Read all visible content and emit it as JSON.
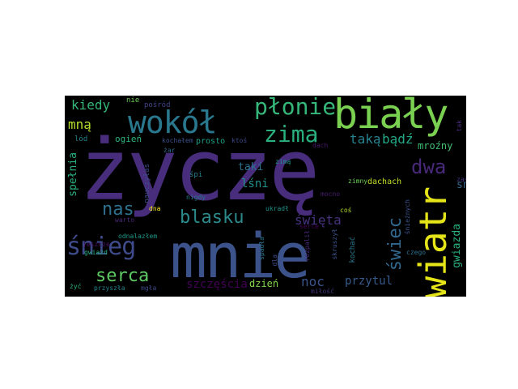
{
  "wordcloud": {
    "background": "#000000",
    "palette": [
      "#440154",
      "#472d7b",
      "#3b528b",
      "#2c728e",
      "#21918c",
      "#28ae80",
      "#5ec962",
      "#addc30",
      "#fde725"
    ],
    "words": [
      {
        "text": "życzę",
        "color": "#472d7b"
      },
      {
        "text": "mnie",
        "color": "#3b528b"
      },
      {
        "text": "biały",
        "color": "#7ad151"
      },
      {
        "text": "wiatr",
        "color": "#e5e419"
      },
      {
        "text": "wokół",
        "color": "#2a788e"
      },
      {
        "text": "płonie",
        "color": "#35b779"
      },
      {
        "text": "zima",
        "color": "#2ab07f"
      },
      {
        "text": "śnieg",
        "color": "#3e4a89"
      },
      {
        "text": "blasku",
        "color": "#2c8a8c"
      },
      {
        "text": "serca",
        "color": "#5ec962"
      },
      {
        "text": "nas",
        "color": "#2e6f8e"
      },
      {
        "text": "dwa",
        "color": "#482979"
      },
      {
        "text": "świec",
        "color": "#31678e"
      },
      {
        "text": "kiedy",
        "color": "#35b779"
      },
      {
        "text": "taką",
        "color": "#26828e"
      },
      {
        "text": "bądź",
        "color": "#22a884"
      },
      {
        "text": "mną",
        "color": "#b5de2b"
      },
      {
        "text": "lśni",
        "color": "#21918c"
      },
      {
        "text": "taki",
        "color": "#2c728e"
      },
      {
        "text": "sny",
        "color": "#31688e"
      },
      {
        "text": "mroźny",
        "color": "#3fbc73"
      },
      {
        "text": "gwiazda",
        "color": "#2ab07f"
      },
      {
        "text": "święta",
        "color": "#46337e"
      },
      {
        "text": "noc",
        "color": "#3b528b"
      },
      {
        "text": "przytul",
        "color": "#365c8d"
      },
      {
        "text": "szczęścia",
        "color": "#440154"
      },
      {
        "text": "dzień",
        "color": "#84d44b"
      },
      {
        "text": "spełnia",
        "color": "#2ab07f"
      },
      {
        "text": "ogień",
        "color": "#2fb47c"
      },
      {
        "text": "pośród",
        "color": "#414487"
      },
      {
        "text": "nie",
        "color": "#6ece58"
      },
      {
        "text": "lód",
        "color": "#26828e"
      },
      {
        "text": "kochałem",
        "color": "#3b528b"
      },
      {
        "text": "prosto",
        "color": "#1fa188"
      },
      {
        "text": "ktoś",
        "color": "#3e4a89"
      },
      {
        "text": "mocno",
        "color": "#481f70"
      },
      {
        "text": "żar",
        "color": "#31688e"
      },
      {
        "text": "nauczyłaś",
        "color": "#3e4a89"
      },
      {
        "text": "śpi",
        "color": "#277f8e"
      },
      {
        "text": "zimą",
        "color": "#1f948c"
      },
      {
        "text": "zimny",
        "color": "#6ece58"
      },
      {
        "text": "dachach",
        "color": "#c2df23"
      },
      {
        "text": "zasp",
        "color": "#46337e"
      },
      {
        "text": "nigdy",
        "color": "#2a788e"
      },
      {
        "text": "ukradł",
        "color": "#1f948c"
      },
      {
        "text": "coś",
        "color": "#b5de2b"
      },
      {
        "text": "dna",
        "color": "#fde725"
      },
      {
        "text": "warto",
        "color": "#482878"
      },
      {
        "text": "jeszcze",
        "color": "#471063"
      },
      {
        "text": "gwiazd",
        "color": "#2ab07f"
      },
      {
        "text": "odnalazłem",
        "color": "#1f998a"
      },
      {
        "text": "spadła",
        "color": "#2c728e"
      },
      {
        "text": "dla",
        "color": "#3e4a89"
      },
      {
        "text": "rozpalił",
        "color": "#482878"
      },
      {
        "text": "skruszył",
        "color": "#3b528b"
      },
      {
        "text": "kochać",
        "color": "#2a788e"
      },
      {
        "text": "śnieżnych",
        "color": "#3b528b"
      },
      {
        "text": "czego",
        "color": "#2c728e"
      },
      {
        "text": "żyć",
        "color": "#2fb47c"
      },
      {
        "text": "przyszła",
        "color": "#26828e"
      },
      {
        "text": "mgła",
        "color": "#3e4a89"
      },
      {
        "text": "miłość",
        "color": "#46337e"
      },
      {
        "text": "serce",
        "color": "#440154"
      },
      {
        "text": "tak",
        "color": "#472d7b"
      },
      {
        "text": "dach",
        "color": "#48186a"
      }
    ]
  }
}
